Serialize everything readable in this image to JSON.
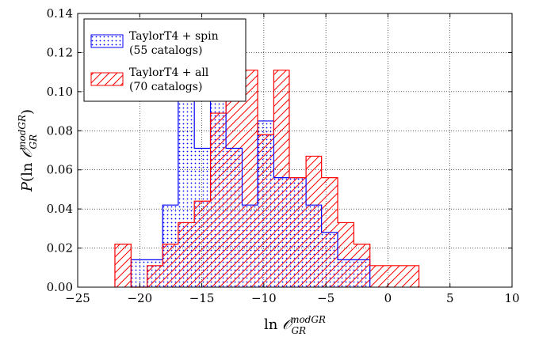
{
  "chart_data": {
    "type": "histogram",
    "xlabel": "ln O_GR^modGR",
    "ylabel": "P(ln O_GR^modGR)",
    "xlim": [
      -25,
      10
    ],
    "ylim": [
      0,
      0.14
    ],
    "xticks": [
      "−25",
      "−20",
      "−15",
      "−10",
      "−5",
      "0",
      "5",
      "10"
    ],
    "yticks": [
      "0.00",
      "0.02",
      "0.04",
      "0.06",
      "0.08",
      "0.10",
      "0.12",
      "0.14"
    ],
    "grid": true,
    "legend_position": "top-left",
    "series": [
      {
        "name": "TaylorT4 + spin",
        "name_line2": "(55 catalogs)",
        "color": "#0000ff",
        "hatch": "dots",
        "bin_edges": [
          -20.7,
          -18.15,
          -16.9,
          -15.6,
          -14.3,
          -13.05,
          -11.75,
          -10.5,
          -9.2,
          -7.95,
          -6.6,
          -5.35,
          -4.05,
          -2.75,
          -1.45
        ],
        "values": [
          0.014,
          0.042,
          0.099,
          0.071,
          0.099,
          0.071,
          0.042,
          0.085,
          0.056,
          0.056,
          0.042,
          0.028,
          0.014,
          0.014
        ]
      },
      {
        "name": "TaylorT4 + all",
        "name_line2": "(70 catalogs)",
        "color": "#ff0000",
        "hatch": "diagonal",
        "bin_edges": [
          -22.0,
          -20.7,
          -19.4,
          -18.15,
          -16.9,
          -15.6,
          -14.3,
          -13.05,
          -11.75,
          -10.5,
          -9.2,
          -7.95,
          -6.6,
          -5.35,
          -4.05,
          -2.75,
          -1.45,
          2.5
        ],
        "values": [
          0.022,
          0.0,
          0.011,
          0.022,
          0.033,
          0.044,
          0.089,
          0.122,
          0.111,
          0.078,
          0.111,
          0.056,
          0.067,
          0.056,
          0.033,
          0.022,
          0.011
        ]
      }
    ]
  }
}
